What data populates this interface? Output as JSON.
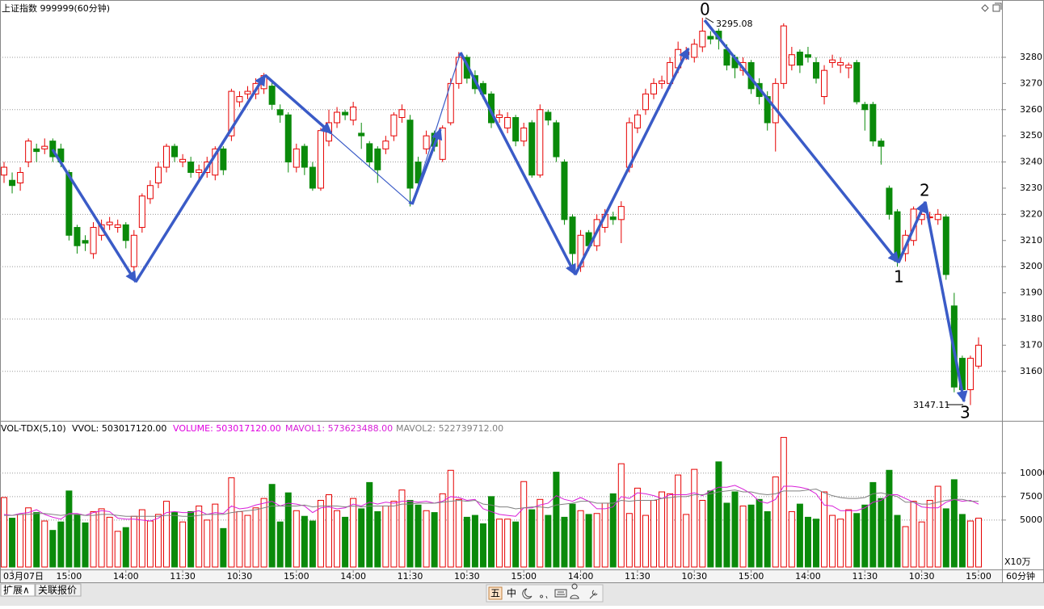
{
  "chart_data": [
    {
      "type": "candlestick",
      "title": "上证指数 999999(60分钟)",
      "up_color": "#e60000",
      "down_color": "#0a8a0a",
      "categories": [
        null,
        "03月07日",
        null,
        null,
        null,
        null,
        null,
        null,
        "15:00",
        null,
        null,
        null,
        null,
        null,
        null,
        "14:00",
        null,
        null,
        null,
        null,
        null,
        null,
        "11:30",
        null,
        null,
        null,
        null,
        null,
        null,
        "10:30",
        null,
        null,
        null,
        null,
        null,
        null,
        "15:00",
        null,
        null,
        null,
        null,
        null,
        null,
        "14:00",
        null,
        null,
        null,
        null,
        null,
        null,
        "11:30",
        null,
        null,
        null,
        null,
        null,
        null,
        "10:30",
        null,
        null,
        null,
        null,
        null,
        null,
        "15:00",
        null,
        null,
        null,
        null,
        null,
        null,
        "14:00",
        null,
        null,
        null,
        null,
        null,
        null,
        "11:30",
        null,
        null,
        null,
        null,
        null,
        null,
        "10:30",
        null,
        null,
        null,
        null,
        null,
        null,
        "15:00",
        null,
        null,
        null,
        null,
        null,
        null,
        "14:00",
        null,
        null,
        null,
        null,
        null,
        null,
        "11:30",
        null,
        null,
        null,
        null,
        null,
        null,
        "10:30",
        null,
        null,
        null,
        null,
        null,
        null,
        "15:00"
      ],
      "open": [
        3235,
        3233,
        3232,
        3240,
        3245,
        3245,
        3248,
        3245,
        3236,
        3215,
        3210,
        3205,
        3212,
        3216,
        3215,
        3216,
        3200,
        3215,
        3226,
        3232,
        3238,
        3246,
        3240,
        3240,
        3236,
        3236,
        3235,
        3245,
        3250,
        3263,
        3266,
        3266,
        3268,
        3269,
        3260,
        3258,
        3238,
        3246,
        3238,
        3230,
        3248,
        3255,
        3259,
        3256,
        3251,
        3247,
        3245,
        3245,
        3250,
        3257,
        3256,
        3240,
        3245,
        3251,
        3241,
        3255,
        3270,
        3280,
        3273,
        3270,
        3266,
        3257,
        3253,
        3257,
        3248,
        3255,
        3235,
        3259,
        3255,
        3240,
        3219,
        3200,
        3213,
        3208,
        3215,
        3219,
        3218,
        3238,
        3253,
        3260,
        3266,
        3270,
        3270,
        3276,
        3281,
        3280,
        3284,
        3288,
        3290,
        3283,
        3280,
        3275,
        3278,
        3270,
        3265,
        3255,
        3270,
        3277,
        3282,
        3281,
        3278,
        3265,
        3278,
        3277,
        3276,
        3278,
        3262,
        3262,
        3248,
        3230,
        3221,
        3205,
        3210,
        3218,
        3219,
        3218,
        3219,
        3185,
        3165,
        3153,
        3162
      ],
      "high": [
        3240,
        3236,
        3238,
        3249,
        3247,
        3249,
        3249,
        3247,
        3237,
        3216,
        3212,
        3217,
        3218,
        3219,
        3218,
        3217,
        3214,
        3228,
        3233,
        3240,
        3247,
        3247,
        3243,
        3242,
        3239,
        3242,
        3246,
        3246,
        3268,
        3267,
        3269,
        3272,
        3274,
        3271,
        3262,
        3259,
        3247,
        3247,
        3240,
        3253,
        3260,
        3261,
        3260,
        3263,
        3255,
        3248,
        3246,
        3250,
        3259,
        3262,
        3258,
        3242,
        3252,
        3252,
        3254,
        3272,
        3282,
        3281,
        3275,
        3271,
        3267,
        3260,
        3259,
        3258,
        3255,
        3256,
        3262,
        3260,
        3256,
        3241,
        3220,
        3214,
        3214,
        3220,
        3222,
        3221,
        3225,
        3257,
        3260,
        3268,
        3272,
        3273,
        3280,
        3286,
        3284,
        3287,
        3295.08,
        3290,
        3291,
        3285,
        3281,
        3280,
        3279,
        3272,
        3267,
        3272,
        3293,
        3284,
        3283,
        3284,
        3280,
        3277,
        3281,
        3280,
        3278,
        3279,
        3263,
        3263,
        3249,
        3231,
        3222,
        3214,
        3223,
        3222,
        3221,
        3222,
        3220,
        3190,
        3166,
        3166,
        3173
      ],
      "low": [
        3232,
        3228,
        3229,
        3238,
        3240,
        3243,
        3240,
        3238,
        3210,
        3205,
        3206,
        3203,
        3210,
        3214,
        3213,
        3207,
        3195,
        3213,
        3224,
        3230,
        3236,
        3240,
        3238,
        3234,
        3233,
        3234,
        3233,
        3235,
        3248,
        3261,
        3264,
        3264,
        3266,
        3260,
        3255,
        3236,
        3236,
        3235,
        3229,
        3229,
        3246,
        3253,
        3256,
        3254,
        3245,
        3238,
        3232,
        3243,
        3248,
        3255,
        3223,
        3230,
        3243,
        3244,
        3240,
        3254,
        3268,
        3270,
        3266,
        3264,
        3253,
        3255,
        3251,
        3246,
        3246,
        3234,
        3234,
        3254,
        3240,
        3216,
        3198,
        3198,
        3206,
        3206,
        3213,
        3216,
        3209,
        3236,
        3251,
        3258,
        3264,
        3268,
        3268,
        3274,
        3279,
        3278,
        3282,
        3285,
        3283,
        3275,
        3272,
        3273,
        3266,
        3262,
        3252,
        3244,
        3268,
        3275,
        3274,
        3278,
        3270,
        3262,
        3276,
        3274,
        3272,
        3262,
        3252,
        3246,
        3239,
        3218,
        3200,
        3202,
        3208,
        3216,
        3217,
        3216,
        3195,
        3152,
        3149,
        3147.11,
        3161
      ],
      "close": [
        3238,
        3231,
        3236,
        3248,
        3244,
        3246,
        3242,
        3240,
        3212,
        3208,
        3209,
        3215,
        3216,
        3217,
        3216,
        3210,
        3212,
        3227,
        3231,
        3238,
        3246,
        3242,
        3241,
        3236,
        3237,
        3240,
        3245,
        3237,
        3267,
        3265,
        3267,
        3270,
        3273,
        3262,
        3258,
        3240,
        3245,
        3238,
        3230,
        3252,
        3255,
        3259,
        3258,
        3261,
        3250,
        3240,
        3237,
        3248,
        3258,
        3260,
        3230,
        3232,
        3250,
        3246,
        3253,
        3270,
        3280,
        3272,
        3268,
        3266,
        3255,
        3258,
        3257,
        3248,
        3253,
        3235,
        3260,
        3256,
        3242,
        3218,
        3205,
        3212,
        3208,
        3218,
        3220,
        3218,
        3223,
        3255,
        3258,
        3266,
        3270,
        3271,
        3278,
        3283,
        3282,
        3285,
        3290,
        3287,
        3287,
        3277,
        3276,
        3278,
        3268,
        3265,
        3255,
        3270,
        3292,
        3281,
        3277,
        3280,
        3272,
        3275,
        3279,
        3278,
        3277,
        3263,
        3260,
        3248,
        3246,
        3220,
        3202,
        3212,
        3222,
        3220,
        3219,
        3220,
        3197,
        3154,
        3153,
        3165,
        3170
      ],
      "ylim": [
        3141.1,
        3301.9
      ],
      "yticks": [
        3160,
        3170,
        3180,
        3190,
        3200,
        3210,
        3220,
        3230,
        3240,
        3250,
        3260,
        3270,
        3280
      ],
      "grid": true,
      "annotations": [
        "0",
        "1",
        "2",
        "3"
      ],
      "high_label": 3295.08,
      "low_label": 3147.11,
      "period": "60分钟"
    },
    {
      "type": "bar",
      "title": "VOL-TDX(5,10)",
      "subtitle": "VVOL: 503017120.00",
      "unit": "X10万",
      "series": [
        {
          "name": "VOLUME: 503017120.00",
          "color": "#e000e0",
          "values": [
            7400,
            5200,
            5600,
            6300,
            5800,
            4900,
            3900,
            4800,
            8100,
            5600,
            4700,
            5900,
            6200,
            5300,
            3800,
            4200,
            5400,
            6100,
            4900,
            5600,
            7000,
            5800,
            4800,
            5900,
            6500,
            5000,
            6700,
            4100,
            9500,
            5900,
            5500,
            6300,
            7300,
            8800,
            4800,
            7900,
            6000,
            5400,
            4900,
            7100,
            7700,
            6000,
            5300,
            7300,
            6200,
            9000,
            5900,
            6500,
            7000,
            8200,
            7100,
            6600,
            6000,
            5800,
            7800,
            10300,
            7200,
            5300,
            5500,
            4600,
            7500,
            5100,
            5100,
            4800,
            9100,
            6100,
            7200,
            5500,
            10100,
            5300,
            6700,
            6000,
            5600,
            5700,
            6800,
            7800,
            11000,
            5700,
            8400,
            5500,
            7100,
            8000,
            7800,
            9800,
            5600,
            10400,
            7100,
            8100,
            11200,
            6800,
            8000,
            6500,
            6600,
            7200,
            5900,
            9600,
            13800,
            5900,
            6700,
            5300,
            5100,
            8000,
            5500,
            5100,
            6100,
            5700,
            6600,
            9000,
            7300,
            10300,
            5500,
            4300,
            7000,
            4800,
            7100,
            8600,
            6200,
            9300,
            5600,
            4900,
            5200
          ]
        },
        {
          "name": "MAVOL1: 573623488.00",
          "color": "#d81ed8",
          "values": [
            5600,
            5500,
            5700,
            5800,
            6100,
            5600,
            5300,
            5100,
            5700,
            5700,
            5500,
            5800,
            6000,
            5900,
            5200,
            5100,
            5100,
            5000,
            4900,
            5200,
            5800,
            5900,
            5800,
            5800,
            6000,
            5600,
            5800,
            5700,
            6500,
            6200,
            6300,
            6600,
            6800,
            7000,
            6500,
            6800,
            6700,
            6500,
            5800,
            6300,
            6400,
            6200,
            6300,
            6700,
            6500,
            6900,
            6700,
            6900,
            6800,
            7000,
            7000,
            6900,
            7000,
            6800,
            7000,
            7500,
            7400,
            7100,
            7200,
            6200,
            5900,
            5600,
            5500,
            5400,
            6300,
            6300,
            6600,
            6800,
            7600,
            7200,
            7000,
            7400,
            7000,
            6200,
            6200,
            6400,
            7500,
            7300,
            7900,
            7800,
            7600,
            7300,
            7700,
            7700,
            7700,
            7900,
            7600,
            8100,
            8500,
            8500,
            8700,
            8300,
            7800,
            7000,
            6800,
            7200,
            8600,
            8600,
            8500,
            8300,
            7800,
            6600,
            6500,
            6000,
            6000,
            6000,
            6300,
            6900,
            7100,
            7700,
            7700,
            7300,
            6900,
            6400,
            6300,
            6300,
            6900,
            7200,
            7000,
            7100,
            6700
          ]
        },
        {
          "name": "MAVOL2: 522739712.00",
          "color": "#808080",
          "values": [
            5500,
            5500,
            5600,
            5600,
            5700,
            5700,
            5600,
            5500,
            5600,
            5600,
            5500,
            5500,
            5600,
            5600,
            5500,
            5400,
            5400,
            5400,
            5400,
            5400,
            5500,
            5500,
            5400,
            5400,
            5500,
            5600,
            5600,
            5600,
            5800,
            5900,
            6000,
            6100,
            6300,
            6500,
            6500,
            6500,
            6500,
            6600,
            6400,
            6500,
            6500,
            6500,
            6400,
            6500,
            6400,
            6500,
            6500,
            6500,
            6500,
            6700,
            6700,
            6800,
            6800,
            6800,
            6900,
            7000,
            7100,
            7000,
            7100,
            6700,
            6600,
            6400,
            6400,
            6200,
            6300,
            6400,
            6400,
            6300,
            6600,
            6700,
            6800,
            7000,
            7000,
            6800,
            6800,
            6800,
            7100,
            7000,
            7100,
            7100,
            7100,
            7300,
            7400,
            7500,
            7500,
            7700,
            7700,
            7800,
            8000,
            8100,
            8200,
            8000,
            8000,
            7800,
            7700,
            7800,
            8100,
            8100,
            8100,
            8200,
            8300,
            7900,
            7600,
            7400,
            7300,
            7300,
            7400,
            7800,
            7900,
            7700,
            7500,
            6900,
            6900,
            6700,
            6700,
            6900,
            7100,
            7200,
            7200,
            7000,
            7000
          ]
        }
      ],
      "ylim": [
        0,
        15400
      ],
      "yticks": [
        5000,
        7500,
        10000
      ],
      "grid": true
    }
  ],
  "tabs": [
    "扩展∧",
    "关联报价"
  ],
  "toolbar": [
    "五",
    "中"
  ]
}
